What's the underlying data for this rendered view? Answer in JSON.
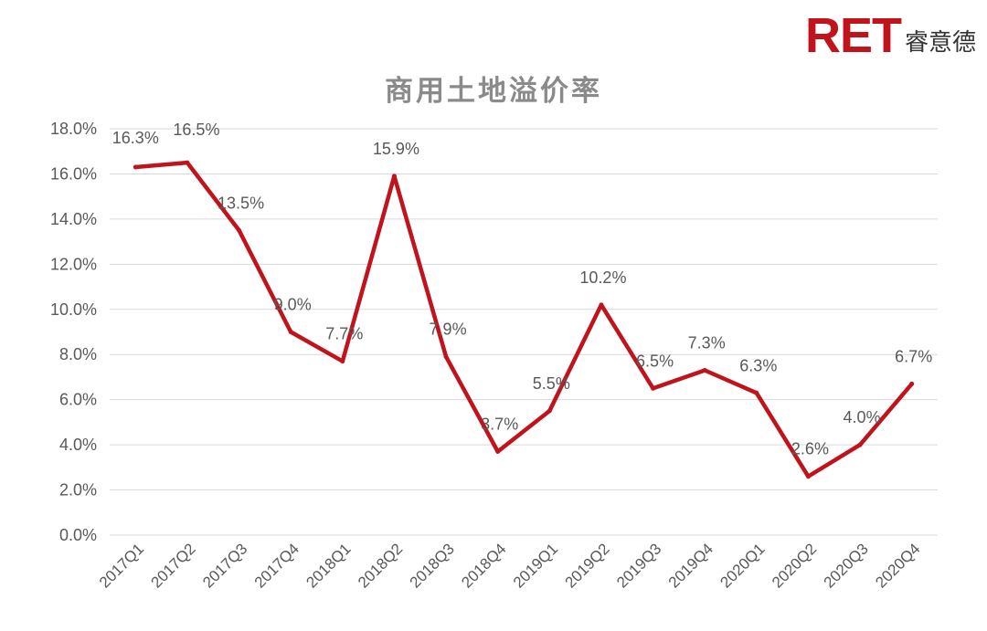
{
  "logo": {
    "mark": "RET",
    "name": "睿意德",
    "color": "#c0131b"
  },
  "chart_data": {
    "type": "line",
    "title": "商用土地溢价率",
    "xlabel": "",
    "ylabel": "",
    "categories": [
      "2017Q1",
      "2017Q2",
      "2017Q3",
      "2017Q4",
      "2018Q1",
      "2018Q2",
      "2018Q3",
      "2018Q4",
      "2019Q1",
      "2019Q2",
      "2019Q3",
      "2019Q4",
      "2020Q1",
      "2020Q2",
      "2020Q3",
      "2020Q4"
    ],
    "series": [
      {
        "values": [
          16.3,
          16.5,
          13.5,
          9.0,
          7.7,
          15.9,
          7.9,
          3.7,
          5.5,
          10.2,
          6.5,
          7.3,
          6.3,
          2.6,
          4.0,
          6.7
        ],
        "labels": [
          "16.3%",
          "16.5%",
          "13.5%",
          "9.0%",
          "7.7%",
          "15.9%",
          "7.9%",
          "3.7%",
          "5.5%",
          "10.2%",
          "6.5%",
          "7.3%",
          "6.3%",
          "2.6%",
          "4.0%",
          "6.7%"
        ],
        "color": "#c0131b"
      }
    ],
    "ylim": [
      0,
      18
    ],
    "yticks": [
      0,
      2,
      4,
      6,
      8,
      10,
      12,
      14,
      16,
      18
    ],
    "ytick_labels": [
      "0.0%",
      "2.0%",
      "4.0%",
      "6.0%",
      "8.0%",
      "10.0%",
      "12.0%",
      "14.0%",
      "16.0%",
      "18.0%"
    ],
    "grid": true,
    "gridline_color": "#d9d9d9",
    "legend": "none"
  }
}
